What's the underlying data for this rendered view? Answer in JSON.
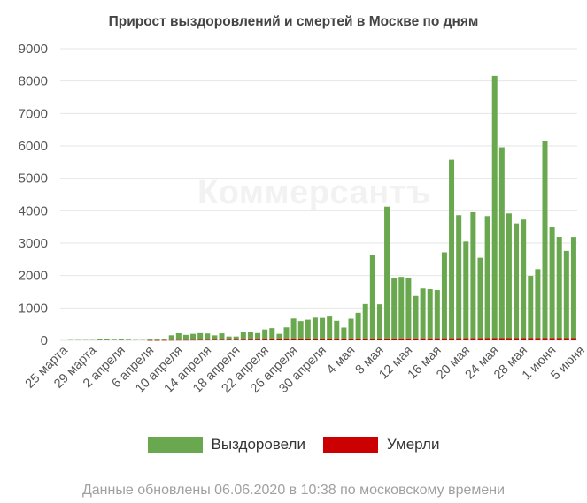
{
  "title": "Прирост выздоровлений и смертей в Москве по дням",
  "watermark": "Коммерсантъ",
  "legend": {
    "recovered": "Выздоровели",
    "deaths": "Умерли"
  },
  "colors": {
    "recovered": "#6aa84f",
    "deaths": "#cc0000",
    "gridline": "#e6e6e6",
    "axis_text": "#555555"
  },
  "footnote": "Данные обновлены 06.06.2020 в 10:38 по московскому времени",
  "chart_data": {
    "type": "bar",
    "stacked": true,
    "title": "Прирост выздоровлений и смертей в Москве по дням",
    "ylim": [
      0,
      9000
    ],
    "yticks": [
      0,
      1000,
      2000,
      3000,
      4000,
      5000,
      6000,
      7000,
      8000,
      9000
    ],
    "xtick_labels": [
      "25 марта",
      "29 марта",
      "2 апреля",
      "6 апреля",
      "10 апреля",
      "14 апреля",
      "18 апреля",
      "22 апреля",
      "26 апреля",
      "30 апреля",
      "4 мая",
      "8 мая",
      "12 мая",
      "16 мая",
      "20 мая",
      "24 мая",
      "28 мая",
      "1 июня",
      "5 июня"
    ],
    "xtick_every": 4,
    "grid": true,
    "legend_position": "bottom",
    "series": [
      {
        "name": "Выздоровели",
        "values": [
          0,
          10,
          10,
          10,
          10,
          30,
          50,
          20,
          30,
          20,
          10,
          10,
          40,
          40,
          30,
          150,
          210,
          160,
          190,
          210,
          200,
          140,
          200,
          100,
          100,
          240,
          240,
          200,
          310,
          350,
          170,
          370,
          640,
          560,
          600,
          660,
          650,
          690,
          560,
          350,
          620,
          800,
          1070,
          2570,
          1060,
          4070,
          1860,
          1900,
          1860,
          1310,
          1540,
          1520,
          1490,
          2650,
          5510,
          3800,
          2980,
          3890,
          2480,
          3770,
          8090,
          5890,
          3850,
          3540,
          3660,
          1920,
          2130,
          6090,
          3420,
          3120,
          2690,
          3120
        ]
      },
      {
        "name": "Умерли",
        "values": [
          0,
          0,
          0,
          0,
          0,
          0,
          0,
          0,
          0,
          0,
          0,
          0,
          2,
          2,
          4,
          6,
          8,
          8,
          10,
          12,
          12,
          14,
          16,
          18,
          18,
          20,
          22,
          24,
          26,
          28,
          30,
          32,
          34,
          36,
          38,
          40,
          42,
          44,
          46,
          46,
          48,
          50,
          52,
          54,
          54,
          56,
          58,
          58,
          60,
          60,
          62,
          62,
          64,
          64,
          64,
          66,
          66,
          66,
          66,
          68,
          68,
          68,
          70,
          70,
          70,
          70,
          70,
          70,
          70,
          70,
          68,
          68
        ]
      }
    ]
  }
}
